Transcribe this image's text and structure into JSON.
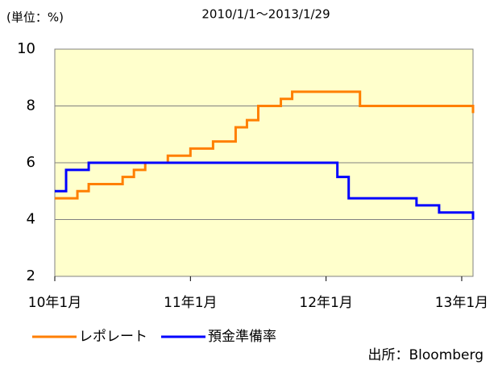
{
  "chart_data": {
    "type": "line",
    "step": true,
    "title": "2010/1/1～2013/1/29",
    "unit_label": "(単位：%)",
    "source": "出所：Bloomberg",
    "xlim": [
      "2010-01",
      "2013-02"
    ],
    "xticks": [
      {
        "value": "2010-01",
        "label": "10年1月"
      },
      {
        "value": "2011-01",
        "label": "11年1月"
      },
      {
        "value": "2012-01",
        "label": "12年1月"
      },
      {
        "value": "2013-01",
        "label": "13年1月"
      }
    ],
    "ylim": [
      2,
      10
    ],
    "yticks": [
      2,
      4,
      6,
      8,
      10
    ],
    "grid": true,
    "series": [
      {
        "name": "レポレート",
        "color": "#ff7f00",
        "x": [
          "2010-01",
          "2010-03",
          "2010-04",
          "2010-07",
          "2010-08",
          "2010-09",
          "2010-11",
          "2011-01",
          "2011-03",
          "2011-05",
          "2011-06",
          "2011-07",
          "2011-09",
          "2011-10",
          "2012-04",
          "2013-02"
        ],
        "values": [
          4.75,
          5.0,
          5.25,
          5.5,
          5.75,
          6.0,
          6.25,
          6.5,
          6.75,
          7.25,
          7.5,
          8.0,
          8.25,
          8.5,
          8.0,
          7.75
        ]
      },
      {
        "name": "預金準備率",
        "color": "#0000ff",
        "x": [
          "2010-01",
          "2010-02",
          "2010-04",
          "2012-02",
          "2012-03",
          "2012-09",
          "2012-11",
          "2013-02"
        ],
        "values": [
          5.0,
          5.75,
          6.0,
          5.5,
          4.75,
          4.5,
          4.25,
          4.0
        ]
      }
    ]
  }
}
